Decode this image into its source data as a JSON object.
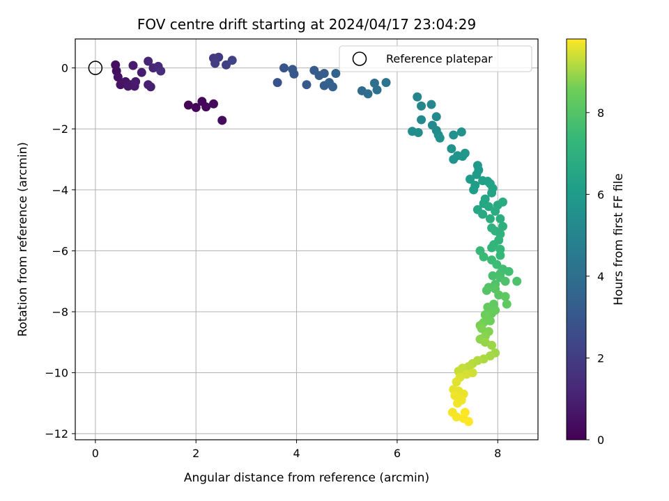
{
  "chart_data": {
    "type": "scatter",
    "title": "FOV centre drift starting at 2024/04/17 23:04:29",
    "xlabel": "Angular distance from reference (arcmin)",
    "ylabel": "Rotation from reference (arcmin)",
    "xlim": [
      -0.4,
      8.8
    ],
    "ylim": [
      -12.2,
      0.95
    ],
    "xticks": [
      0,
      2,
      4,
      6,
      8
    ],
    "yticks": [
      0,
      -2,
      -4,
      -6,
      -8,
      -10,
      -12
    ],
    "grid": true,
    "legend": {
      "placement": "top-right",
      "entries": [
        "Reference platepar"
      ]
    },
    "reference_point": {
      "x": 0,
      "y": 0
    },
    "colorbar": {
      "label": "Hours from first FF file",
      "colormap": "viridis",
      "range": [
        0,
        9.8
      ],
      "ticks": [
        0,
        2,
        4,
        6,
        8
      ]
    },
    "points": [
      [
        1.85,
        -1.22,
        0.05
      ],
      [
        2.0,
        -1.3,
        0.1
      ],
      [
        2.12,
        -1.1,
        0.15
      ],
      [
        2.2,
        -1.28,
        0.2
      ],
      [
        2.35,
        -1.18,
        0.25
      ],
      [
        2.52,
        -1.72,
        0.3
      ],
      [
        0.4,
        0.1,
        0.4
      ],
      [
        0.42,
        -0.1,
        0.45
      ],
      [
        0.45,
        -0.3,
        0.5
      ],
      [
        0.5,
        -0.55,
        0.55
      ],
      [
        0.6,
        -0.45,
        0.6
      ],
      [
        0.65,
        -0.6,
        0.65
      ],
      [
        0.7,
        -0.55,
        0.7
      ],
      [
        0.78,
        -0.6,
        0.75
      ],
      [
        0.8,
        -0.45,
        0.8
      ],
      [
        0.75,
        0.08,
        0.85
      ],
      [
        0.92,
        -0.15,
        0.9
      ],
      [
        1.05,
        -0.55,
        0.95
      ],
      [
        1.1,
        -0.62,
        1.0
      ],
      [
        1.05,
        0.22,
        1.1
      ],
      [
        1.15,
        0.0,
        1.2
      ],
      [
        1.25,
        0.05,
        1.3
      ],
      [
        1.3,
        -0.1,
        1.4
      ],
      [
        2.35,
        0.32,
        1.8
      ],
      [
        2.45,
        0.35,
        1.9
      ],
      [
        2.38,
        0.15,
        2.0
      ],
      [
        2.6,
        0.1,
        2.1
      ],
      [
        2.72,
        0.25,
        2.2
      ],
      [
        3.62,
        -0.48,
        2.8
      ],
      [
        3.75,
        0.0,
        2.9
      ],
      [
        3.92,
        -0.05,
        3.0
      ],
      [
        3.95,
        -0.2,
        3.05
      ],
      [
        4.2,
        -0.55,
        3.1
      ],
      [
        4.35,
        -0.08,
        3.15
      ],
      [
        4.45,
        -0.25,
        3.2
      ],
      [
        4.55,
        -0.18,
        3.25
      ],
      [
        4.55,
        -0.58,
        3.3
      ],
      [
        4.65,
        -0.48,
        3.35
      ],
      [
        4.72,
        -0.62,
        3.4
      ],
      [
        4.78,
        -0.18,
        3.45
      ],
      [
        5.3,
        -0.75,
        3.8
      ],
      [
        5.42,
        -0.85,
        3.9
      ],
      [
        5.55,
        -0.5,
        4.0
      ],
      [
        5.6,
        -0.72,
        4.1
      ],
      [
        5.78,
        -0.48,
        4.2
      ],
      [
        6.4,
        -0.95,
        5.0
      ],
      [
        6.48,
        -1.25,
        5.05
      ],
      [
        6.68,
        -1.2,
        5.1
      ],
      [
        6.78,
        -1.6,
        5.15
      ],
      [
        6.48,
        -1.7,
        5.2
      ],
      [
        6.7,
        -1.88,
        5.25
      ],
      [
        6.78,
        -2.05,
        5.3
      ],
      [
        6.3,
        -2.08,
        5.35
      ],
      [
        6.42,
        -2.12,
        5.4
      ],
      [
        6.82,
        -2.2,
        5.45
      ],
      [
        6.85,
        -2.3,
        5.5
      ],
      [
        7.12,
        -2.2,
        5.55
      ],
      [
        7.28,
        -2.1,
        5.6
      ],
      [
        7.08,
        -2.65,
        5.65
      ],
      [
        7.2,
        -2.88,
        5.7
      ],
      [
        7.12,
        -3.0,
        5.75
      ],
      [
        7.3,
        -2.9,
        5.8
      ],
      [
        7.35,
        -2.8,
        5.85
      ],
      [
        7.6,
        -3.2,
        5.9
      ],
      [
        7.62,
        -3.35,
        5.95
      ],
      [
        7.58,
        -3.5,
        6.0
      ],
      [
        7.45,
        -3.65,
        6.05
      ],
      [
        7.55,
        -3.85,
        6.1
      ],
      [
        7.52,
        -4.0,
        6.15
      ],
      [
        7.7,
        -3.7,
        6.2
      ],
      [
        7.8,
        -3.72,
        6.25
      ],
      [
        7.85,
        -3.8,
        6.3
      ],
      [
        7.9,
        -3.95,
        6.35
      ],
      [
        7.88,
        -4.1,
        6.4
      ],
      [
        7.75,
        -4.3,
        6.45
      ],
      [
        7.72,
        -4.45,
        6.5
      ],
      [
        7.6,
        -4.65,
        6.55
      ],
      [
        7.7,
        -4.8,
        6.6
      ],
      [
        7.82,
        -4.55,
        6.65
      ],
      [
        8.0,
        -4.5,
        6.7
      ],
      [
        8.1,
        -4.4,
        6.75
      ],
      [
        7.95,
        -4.7,
        6.8
      ],
      [
        7.85,
        -4.95,
        6.85
      ],
      [
        8.05,
        -4.95,
        6.9
      ],
      [
        8.1,
        -5.2,
        6.95
      ],
      [
        7.88,
        -5.25,
        7.0
      ],
      [
        7.95,
        -5.35,
        7.05
      ],
      [
        8.05,
        -5.45,
        7.1
      ],
      [
        8.02,
        -5.65,
        7.15
      ],
      [
        7.92,
        -5.8,
        7.2
      ],
      [
        7.88,
        -5.9,
        7.25
      ],
      [
        8.05,
        -5.95,
        7.3
      ],
      [
        8.05,
        -6.15,
        7.35
      ],
      [
        7.65,
        -6.0,
        7.4
      ],
      [
        7.72,
        -6.2,
        7.45
      ],
      [
        7.88,
        -6.3,
        7.5
      ],
      [
        7.98,
        -6.45,
        7.55
      ],
      [
        8.1,
        -6.6,
        7.6
      ],
      [
        8.22,
        -6.68,
        7.65
      ],
      [
        8.05,
        -6.75,
        7.7
      ],
      [
        7.9,
        -6.82,
        7.75
      ],
      [
        8.05,
        -6.88,
        7.8
      ],
      [
        8.38,
        -7.0,
        7.85
      ],
      [
        8.15,
        -7.0,
        7.9
      ],
      [
        7.95,
        -7.1,
        7.95
      ],
      [
        7.82,
        -7.2,
        8.0
      ],
      [
        7.78,
        -7.3,
        8.05
      ],
      [
        7.95,
        -7.25,
        8.1
      ],
      [
        8.02,
        -7.45,
        8.15
      ],
      [
        8.15,
        -7.5,
        8.2
      ],
      [
        8.18,
        -7.75,
        8.25
      ],
      [
        7.92,
        -7.75,
        8.3
      ],
      [
        7.8,
        -7.85,
        8.35
      ],
      [
        7.95,
        -7.95,
        8.4
      ],
      [
        7.88,
        -8.05,
        8.45
      ],
      [
        7.75,
        -8.1,
        8.5
      ],
      [
        7.85,
        -8.3,
        8.55
      ],
      [
        7.72,
        -8.35,
        8.6
      ],
      [
        7.65,
        -8.45,
        8.65
      ],
      [
        7.68,
        -8.55,
        8.7
      ],
      [
        7.82,
        -8.65,
        8.75
      ],
      [
        7.75,
        -8.8,
        8.8
      ],
      [
        7.65,
        -8.9,
        8.85
      ],
      [
        7.75,
        -9.0,
        8.9
      ],
      [
        7.88,
        -9.1,
        8.95
      ],
      [
        7.95,
        -9.35,
        9.0
      ],
      [
        7.85,
        -9.45,
        9.05
      ],
      [
        7.72,
        -9.55,
        9.1
      ],
      [
        7.6,
        -9.6,
        9.15
      ],
      [
        7.5,
        -9.7,
        9.2
      ],
      [
        7.42,
        -9.8,
        9.25
      ],
      [
        7.3,
        -9.85,
        9.3
      ],
      [
        7.22,
        -9.95,
        9.35
      ],
      [
        7.5,
        -10.0,
        9.4
      ],
      [
        7.38,
        -10.05,
        9.45
      ],
      [
        7.25,
        -10.15,
        9.5
      ],
      [
        7.18,
        -10.3,
        9.55
      ],
      [
        7.12,
        -10.55,
        9.6
      ],
      [
        7.22,
        -10.6,
        9.62
      ],
      [
        7.32,
        -10.7,
        9.64
      ],
      [
        7.15,
        -10.75,
        9.66
      ],
      [
        7.28,
        -10.9,
        9.68
      ],
      [
        7.2,
        -11.0,
        9.7
      ],
      [
        7.1,
        -11.3,
        9.72
      ],
      [
        7.18,
        -11.45,
        9.74
      ],
      [
        7.32,
        -11.5,
        9.76
      ],
      [
        7.42,
        -11.6,
        9.78
      ],
      [
        7.35,
        -11.3,
        9.8
      ]
    ]
  }
}
